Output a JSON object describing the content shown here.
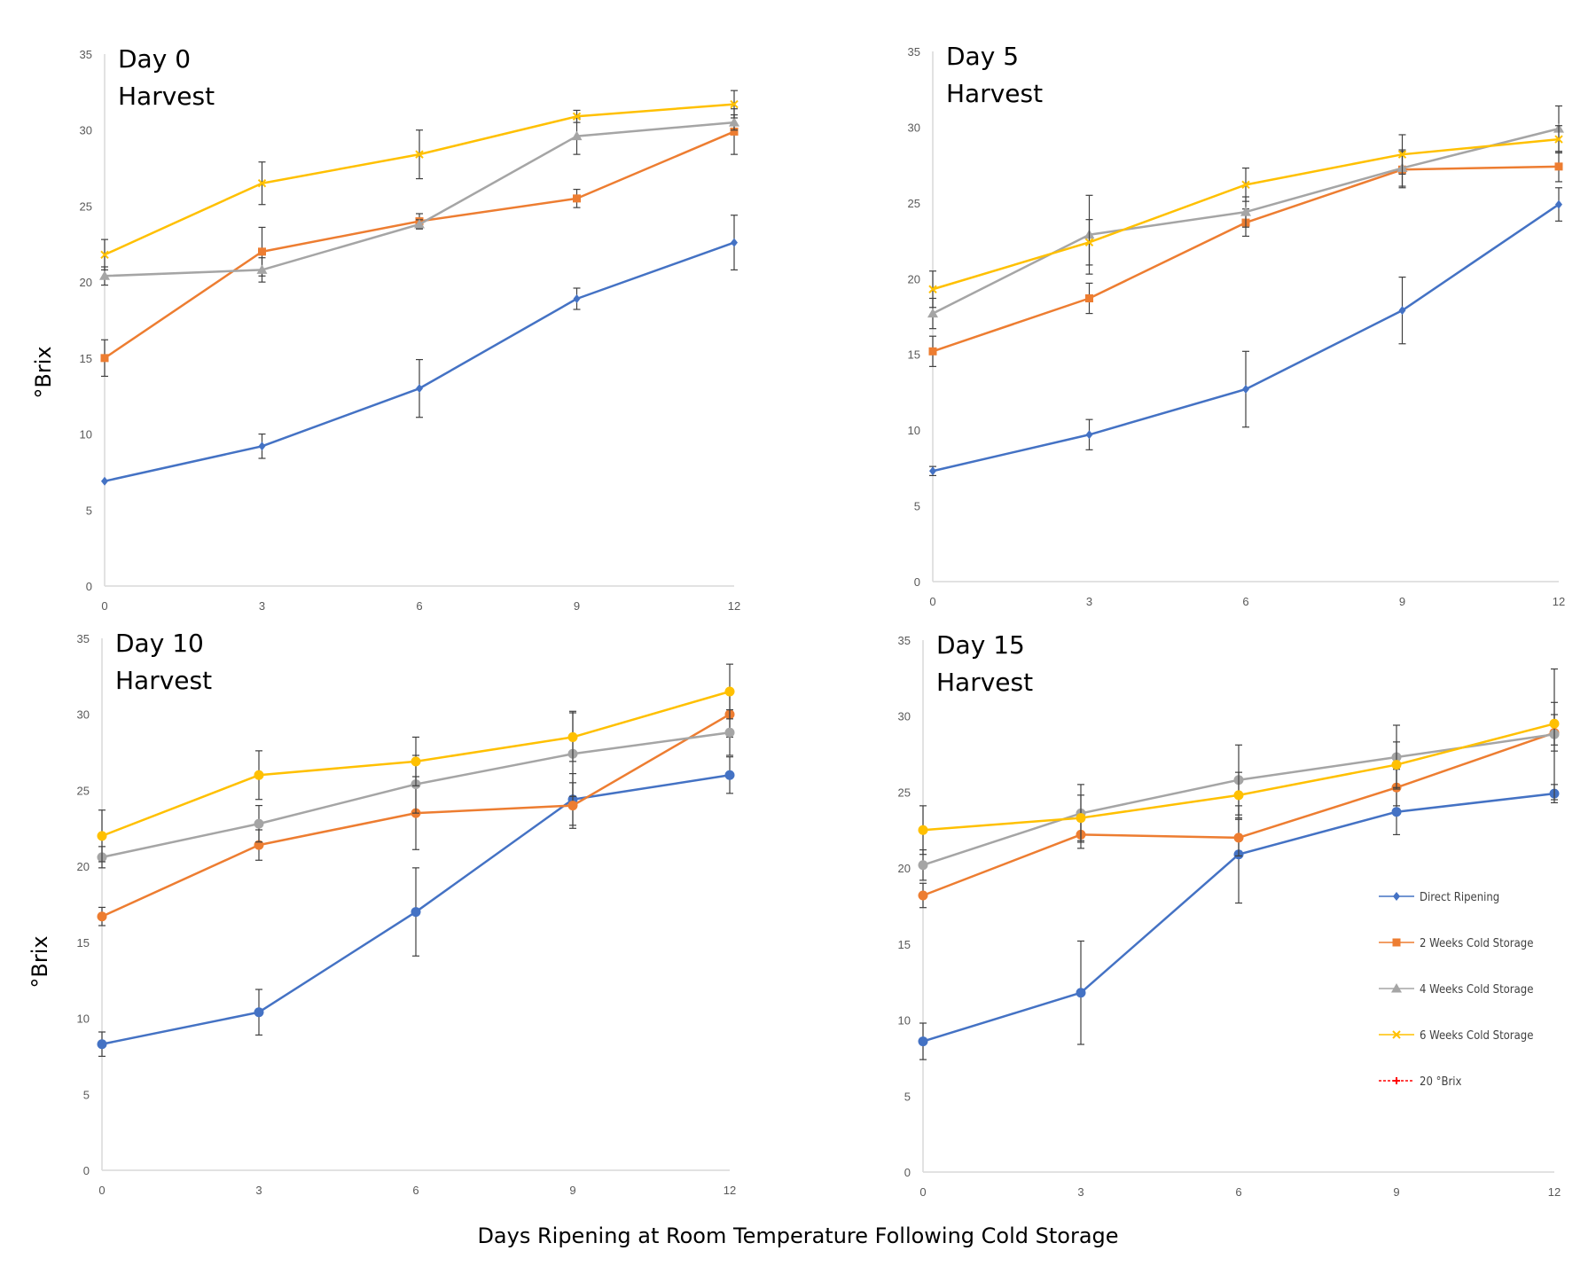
{
  "figure": {
    "ylabel": "°Brix",
    "xlabel": "Days Ripening at Room Temperature Following Cold Storage"
  },
  "colors": {
    "direct_ripening": "#4472C4",
    "two_weeks": "#ED7D31",
    "four_weeks": "#A5A5A5",
    "six_weeks": "#FFC000",
    "brix20": "#FF0000",
    "axis": "#D9D9D9",
    "errorbar": "#404040"
  },
  "legend": {
    "entries": [
      {
        "label": "Direct Ripening",
        "color": "#4472C4",
        "marker": "diamond",
        "dashed": false
      },
      {
        "label": "2 Weeks Cold Storage",
        "color": "#ED7D31",
        "marker": "square",
        "dashed": false
      },
      {
        "label": "4 Weeks Cold Storage",
        "color": "#A5A5A5",
        "marker": "triangle",
        "dashed": false
      },
      {
        "label": "6 Weeks Cold Storage",
        "color": "#FFC000",
        "marker": "x",
        "dashed": false
      },
      {
        "label": "20 °Brix",
        "color": "#FF0000",
        "marker": "plus",
        "dashed": true
      }
    ]
  },
  "chart_data": [
    {
      "type": "line",
      "title": "Day 0\nHarvest",
      "x": [
        0,
        3,
        6,
        9,
        12
      ],
      "xticks": [
        "0",
        "3",
        "6",
        "9",
        "12"
      ],
      "ylim": [
        0,
        35
      ],
      "yticks": [
        "0",
        "5",
        "10",
        "15",
        "20",
        "25",
        "30",
        "35"
      ],
      "grid": false,
      "series": [
        {
          "name": "Direct Ripening",
          "color": "#4472C4",
          "marker": "diamond",
          "values": [
            6.9,
            9.2,
            13.0,
            18.9,
            22.6
          ],
          "errors": [
            0,
            0.8,
            1.9,
            0.7,
            1.8
          ]
        },
        {
          "name": "2 Weeks Cold Storage",
          "color": "#ED7D31",
          "marker": "square",
          "values": [
            15.0,
            22.0,
            24.0,
            25.5,
            29.9
          ],
          "errors": [
            1.2,
            1.6,
            0.5,
            0.6,
            1.5
          ]
        },
        {
          "name": "4 Weeks Cold Storage",
          "color": "#A5A5A5",
          "marker": "triangle",
          "values": [
            20.4,
            20.8,
            23.8,
            29.6,
            30.5
          ],
          "errors": [
            0.6,
            0.8,
            0.3,
            1.2,
            0.5
          ]
        },
        {
          "name": "6 Weeks Cold Storage",
          "color": "#FFC000",
          "marker": "x",
          "values": [
            21.8,
            26.5,
            28.4,
            30.9,
            31.7
          ],
          "errors": [
            1.0,
            1.4,
            1.6,
            0.4,
            0.9
          ]
        }
      ]
    },
    {
      "type": "line",
      "title": "Day 5\nHarvest",
      "x": [
        0,
        3,
        6,
        9,
        12
      ],
      "xticks": [
        "0",
        "3",
        "6",
        "9",
        "12"
      ],
      "ylim": [
        0,
        35
      ],
      "yticks": [
        "0",
        "5",
        "10",
        "15",
        "20",
        "25",
        "30",
        "35"
      ],
      "grid": false,
      "series": [
        {
          "name": "Direct Ripening",
          "color": "#4472C4",
          "marker": "diamond",
          "values": [
            7.3,
            9.7,
            12.7,
            17.9,
            24.9
          ],
          "errors": [
            0.3,
            1.0,
            2.5,
            2.2,
            1.1
          ]
        },
        {
          "name": "2 Weeks Cold Storage",
          "color": "#ED7D31",
          "marker": "square",
          "values": [
            15.2,
            18.7,
            23.7,
            27.2,
            27.4
          ],
          "errors": [
            1.0,
            1.0,
            0.9,
            1.2,
            1.0
          ]
        },
        {
          "name": "4 Weeks Cold Storage",
          "color": "#A5A5A5",
          "marker": "triangle",
          "values": [
            17.7,
            22.9,
            24.4,
            27.3,
            29.9
          ],
          "errors": [
            1.0,
            2.6,
            1.0,
            1.2,
            1.5
          ]
        },
        {
          "name": "6 Weeks Cold Storage",
          "color": "#FFC000",
          "marker": "x",
          "values": [
            19.3,
            22.4,
            26.2,
            28.2,
            29.2
          ],
          "errors": [
            1.2,
            1.5,
            1.1,
            1.3,
            0.9
          ]
        }
      ]
    },
    {
      "type": "line",
      "title": "Day 10\nHarvest",
      "x": [
        0,
        3,
        6,
        9,
        12
      ],
      "xticks": [
        "0",
        "3",
        "6",
        "9",
        "12"
      ],
      "ylim": [
        0,
        35
      ],
      "yticks": [
        "0",
        "5",
        "10",
        "15",
        "20",
        "25",
        "30",
        "35"
      ],
      "grid": false,
      "series": [
        {
          "name": "Direct Ripening",
          "color": "#4472C4",
          "marker": "circle",
          "values": [
            8.3,
            10.4,
            17.0,
            24.4,
            26.0
          ],
          "errors": [
            0.8,
            1.5,
            2.9,
            1.7,
            1.2
          ]
        },
        {
          "name": "2 Weeks Cold Storage",
          "color": "#ED7D31",
          "marker": "circle",
          "values": [
            16.7,
            21.4,
            23.5,
            24.0,
            30.0
          ],
          "errors": [
            0.6,
            1.0,
            2.4,
            1.5,
            1.5
          ]
        },
        {
          "name": "4 Weeks Cold Storage",
          "color": "#A5A5A5",
          "marker": "circle",
          "values": [
            20.6,
            22.8,
            25.4,
            27.4,
            28.8
          ],
          "errors": [
            0.7,
            1.2,
            1.9,
            2.8,
            1.5
          ]
        },
        {
          "name": "6 Weeks Cold Storage",
          "color": "#FFC000",
          "marker": "circle",
          "values": [
            22.0,
            26.0,
            26.9,
            28.5,
            31.5
          ],
          "errors": [
            1.7,
            1.6,
            1.6,
            1.6,
            1.8
          ]
        }
      ]
    },
    {
      "type": "line",
      "title": "Day 15\nHarvest",
      "x": [
        0,
        3,
        6,
        9,
        12
      ],
      "xticks": [
        "0",
        "3",
        "6",
        "9",
        "12"
      ],
      "ylim": [
        0,
        35
      ],
      "yticks": [
        "0",
        "5",
        "10",
        "15",
        "20",
        "25",
        "30",
        "35"
      ],
      "grid": false,
      "series": [
        {
          "name": "Direct Ripening",
          "color": "#4472C4",
          "marker": "circle",
          "values": [
            8.6,
            11.8,
            20.9,
            23.7,
            24.9
          ],
          "errors": [
            1.2,
            3.4,
            3.2,
            1.5,
            0.6
          ]
        },
        {
          "name": "2 Weeks Cold Storage",
          "color": "#ED7D31",
          "marker": "circle",
          "values": [
            18.2,
            22.2,
            22.0,
            25.3,
            28.9
          ],
          "errors": [
            0.8,
            0.9,
            1.2,
            1.2,
            1.2
          ]
        },
        {
          "name": "4 Weeks Cold Storage",
          "color": "#A5A5A5",
          "marker": "circle",
          "values": [
            20.2,
            23.6,
            25.8,
            27.3,
            28.8
          ],
          "errors": [
            1.0,
            1.9,
            2.3,
            2.1,
            4.3
          ]
        },
        {
          "name": "6 Weeks Cold Storage",
          "color": "#FFC000",
          "marker": "circle",
          "values": [
            22.5,
            23.3,
            24.8,
            26.8,
            29.5
          ],
          "errors": [
            1.6,
            1.5,
            1.5,
            1.5,
            1.4
          ]
        }
      ]
    }
  ]
}
